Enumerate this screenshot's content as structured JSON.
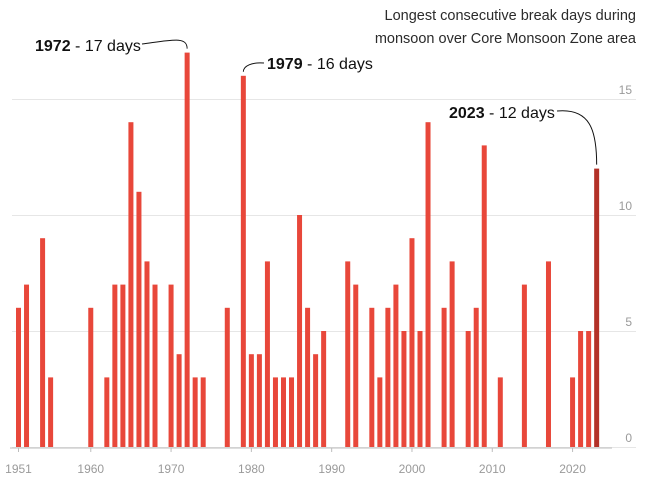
{
  "chart_data": {
    "type": "bar",
    "title_lines": [
      "Longest consecutive break days during",
      "monsoon over Core Monsoon Zone area"
    ],
    "x": [
      1951,
      1952,
      1953,
      1954,
      1955,
      1956,
      1957,
      1958,
      1959,
      1960,
      1961,
      1962,
      1963,
      1964,
      1965,
      1966,
      1967,
      1968,
      1969,
      1970,
      1971,
      1972,
      1973,
      1974,
      1975,
      1976,
      1977,
      1978,
      1979,
      1980,
      1981,
      1982,
      1983,
      1984,
      1985,
      1986,
      1987,
      1988,
      1989,
      1990,
      1991,
      1992,
      1993,
      1994,
      1995,
      1996,
      1997,
      1998,
      1999,
      2000,
      2001,
      2002,
      2003,
      2004,
      2005,
      2006,
      2007,
      2008,
      2009,
      2010,
      2011,
      2012,
      2013,
      2014,
      2015,
      2016,
      2017,
      2018,
      2019,
      2020,
      2021,
      2022,
      2023
    ],
    "values": [
      6,
      7,
      0,
      9,
      3,
      0,
      0,
      0,
      0,
      6,
      0,
      3,
      7,
      7,
      14,
      11,
      8,
      7,
      0,
      7,
      4,
      17,
      3,
      3,
      0,
      0,
      6,
      0,
      16,
      4,
      4,
      8,
      3,
      3,
      3,
      10,
      6,
      4,
      5,
      0,
      0,
      8,
      7,
      0,
      6,
      3,
      6,
      7,
      5,
      9,
      5,
      14,
      0,
      6,
      8,
      0,
      5,
      6,
      13,
      0,
      3,
      0,
      0,
      7,
      0,
      0,
      8,
      0,
      0,
      3,
      5,
      5,
      12
    ],
    "highlight_year": 2023,
    "colors": {
      "bar": "#e8473a",
      "highlight": "#b33128"
    },
    "ylim": [
      0,
      18
    ],
    "y_ticks": [
      0,
      5,
      10,
      15
    ],
    "x_ticks": [
      1951,
      1960,
      1970,
      1980,
      1990,
      2000,
      2010,
      2020
    ],
    "grid": true,
    "annotations": [
      {
        "year": 1972,
        "bold": "1972",
        "rest": " - 17 days"
      },
      {
        "year": 1979,
        "bold": "1979",
        "rest": " - 16 days"
      },
      {
        "year": 2023,
        "bold": "2023",
        "rest": " - 12 days"
      }
    ]
  }
}
